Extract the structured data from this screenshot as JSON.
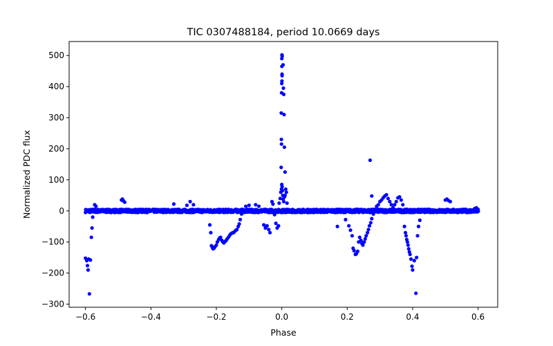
{
  "chart_data": {
    "type": "scatter",
    "title": "TIC 0307488184, period 10.0669 days",
    "xlabel": "Phase",
    "ylabel": "Normalized PDC flux",
    "xlim": [
      -0.65,
      0.66
    ],
    "ylim": [
      -310,
      545
    ],
    "xticks": [
      -0.6,
      -0.4,
      -0.2,
      0.0,
      0.2,
      0.4,
      0.6
    ],
    "xtick_labels": [
      "−0.6",
      "−0.4",
      "−0.2",
      "0.0",
      "0.2",
      "0.4",
      "0.6"
    ],
    "yticks": [
      -300,
      -200,
      -100,
      0,
      100,
      200,
      300,
      400,
      500
    ],
    "ytick_labels": [
      "−300",
      "−200",
      "−100",
      "0",
      "100",
      "200",
      "300",
      "400",
      "500"
    ],
    "grid": false,
    "legend": "none",
    "marker_color": "#0000ff",
    "baseline_band": {
      "x_range": [
        -0.6,
        0.6
      ],
      "y_center": 0,
      "y_spread": 5
    },
    "points": [
      [
        -0.6,
        -152
      ],
      [
        -0.596,
        -160
      ],
      [
        -0.594,
        -176
      ],
      [
        -0.592,
        -190
      ],
      [
        -0.59,
        -155
      ],
      [
        -0.588,
        -267
      ],
      [
        -0.585,
        -158
      ],
      [
        -0.582,
        -85
      ],
      [
        -0.58,
        -55
      ],
      [
        -0.578,
        -20
      ],
      [
        -0.575,
        5
      ],
      [
        -0.572,
        20
      ],
      [
        -0.568,
        15
      ],
      [
        -0.49,
        35
      ],
      [
        -0.487,
        38
      ],
      [
        -0.484,
        32
      ],
      [
        -0.48,
        28
      ],
      [
        -0.29,
        18
      ],
      [
        -0.28,
        30
      ],
      [
        -0.27,
        20
      ],
      [
        -0.33,
        22
      ],
      [
        -0.22,
        -45
      ],
      [
        -0.217,
        -70
      ],
      [
        -0.215,
        -112
      ],
      [
        -0.212,
        -118
      ],
      [
        -0.21,
        -122
      ],
      [
        -0.207,
        -120
      ],
      [
        -0.204,
        -115
      ],
      [
        -0.2,
        -110
      ],
      [
        -0.197,
        -100
      ],
      [
        -0.193,
        -92
      ],
      [
        -0.19,
        -87
      ],
      [
        -0.187,
        -85
      ],
      [
        -0.183,
        -95
      ],
      [
        -0.18,
        -100
      ],
      [
        -0.177,
        -103
      ],
      [
        -0.173,
        -98
      ],
      [
        -0.17,
        -95
      ],
      [
        -0.167,
        -90
      ],
      [
        -0.163,
        -85
      ],
      [
        -0.16,
        -80
      ],
      [
        -0.157,
        -75
      ],
      [
        -0.153,
        -72
      ],
      [
        -0.15,
        -70
      ],
      [
        -0.147,
        -70
      ],
      [
        -0.143,
        -65
      ],
      [
        -0.14,
        -62
      ],
      [
        -0.137,
        -60
      ],
      [
        -0.133,
        -50
      ],
      [
        -0.13,
        -42
      ],
      [
        -0.127,
        -28
      ],
      [
        -0.123,
        -10
      ],
      [
        -0.11,
        15
      ],
      [
        -0.1,
        18
      ],
      [
        -0.08,
        20
      ],
      [
        -0.07,
        15
      ],
      [
        -0.055,
        -45
      ],
      [
        -0.05,
        -55
      ],
      [
        -0.045,
        -48
      ],
      [
        -0.04,
        -60
      ],
      [
        -0.036,
        -70
      ],
      [
        -0.03,
        30
      ],
      [
        -0.027,
        22
      ],
      [
        -0.022,
        -12
      ],
      [
        -0.018,
        -40
      ],
      [
        -0.014,
        -55
      ],
      [
        -0.01,
        -48
      ],
      [
        -0.008,
        25
      ],
      [
        -0.005,
        40
      ],
      [
        -0.003,
        60
      ],
      [
        -0.001,
        70
      ],
      [
        0.0,
        85
      ],
      [
        0.001,
        78
      ],
      [
        0.002,
        65
      ],
      [
        0.003,
        50
      ],
      [
        0.004,
        38
      ],
      [
        0.006,
        30
      ],
      [
        0.008,
        45
      ],
      [
        0.01,
        50
      ],
      [
        0.012,
        70
      ],
      [
        0.014,
        60
      ],
      [
        0.016,
        25
      ],
      [
        -0.0018,
        140
      ],
      [
        -0.0008,
        215
      ],
      [
        -0.0012,
        230
      ],
      [
        -0.0015,
        315
      ],
      [
        -0.0005,
        380
      ],
      [
        0.0,
        410
      ],
      [
        0.0005,
        418
      ],
      [
        0.001,
        435
      ],
      [
        0.0008,
        440
      ],
      [
        0.0002,
        465
      ],
      [
        0.0001,
        490
      ],
      [
        0.0012,
        498
      ],
      [
        0.0006,
        502
      ],
      [
        0.004,
        470
      ],
      [
        0.005,
        395
      ],
      [
        0.006,
        375
      ],
      [
        0.007,
        310
      ],
      [
        0.008,
        205
      ],
      [
        0.01,
        125
      ],
      [
        0.17,
        -50
      ],
      [
        0.195,
        -28
      ],
      [
        0.205,
        -48
      ],
      [
        0.21,
        -62
      ],
      [
        0.215,
        -80
      ],
      [
        0.218,
        -120
      ],
      [
        0.221,
        -128
      ],
      [
        0.225,
        -140
      ],
      [
        0.228,
        -138
      ],
      [
        0.232,
        -130
      ],
      [
        0.235,
        -100
      ],
      [
        0.238,
        -85
      ],
      [
        0.242,
        -95
      ],
      [
        0.245,
        -105
      ],
      [
        0.248,
        -110
      ],
      [
        0.252,
        -100
      ],
      [
        0.255,
        -90
      ],
      [
        0.258,
        -80
      ],
      [
        0.262,
        -70
      ],
      [
        0.265,
        -60
      ],
      [
        0.268,
        -48
      ],
      [
        0.272,
        -38
      ],
      [
        0.275,
        -25
      ],
      [
        0.28,
        -10
      ],
      [
        0.27,
        163
      ],
      [
        0.275,
        48
      ],
      [
        0.285,
        5
      ],
      [
        0.29,
        15
      ],
      [
        0.295,
        20
      ],
      [
        0.3,
        30
      ],
      [
        0.305,
        35
      ],
      [
        0.31,
        42
      ],
      [
        0.315,
        48
      ],
      [
        0.32,
        52
      ],
      [
        0.325,
        40
      ],
      [
        0.33,
        30
      ],
      [
        0.335,
        20
      ],
      [
        0.34,
        10
      ],
      [
        0.345,
        20
      ],
      [
        0.35,
        30
      ],
      [
        0.355,
        42
      ],
      [
        0.36,
        45
      ],
      [
        0.365,
        35
      ],
      [
        0.37,
        20
      ],
      [
        0.375,
        -50
      ],
      [
        0.378,
        -70
      ],
      [
        0.38,
        -80
      ],
      [
        0.382,
        -92
      ],
      [
        0.384,
        -100
      ],
      [
        0.386,
        -110
      ],
      [
        0.388,
        -122
      ],
      [
        0.39,
        -132
      ],
      [
        0.392,
        -140
      ],
      [
        0.395,
        -155
      ],
      [
        0.398,
        -178
      ],
      [
        0.4,
        -190
      ],
      [
        0.405,
        -160
      ],
      [
        0.41,
        -265
      ],
      [
        0.412,
        -150
      ],
      [
        0.415,
        -80
      ],
      [
        0.418,
        -50
      ],
      [
        0.422,
        -30
      ],
      [
        0.5,
        35
      ],
      [
        0.505,
        38
      ],
      [
        0.51,
        33
      ],
      [
        0.515,
        30
      ],
      [
        0.59,
        8
      ],
      [
        0.595,
        10
      ],
      [
        0.6,
        5
      ]
    ]
  }
}
